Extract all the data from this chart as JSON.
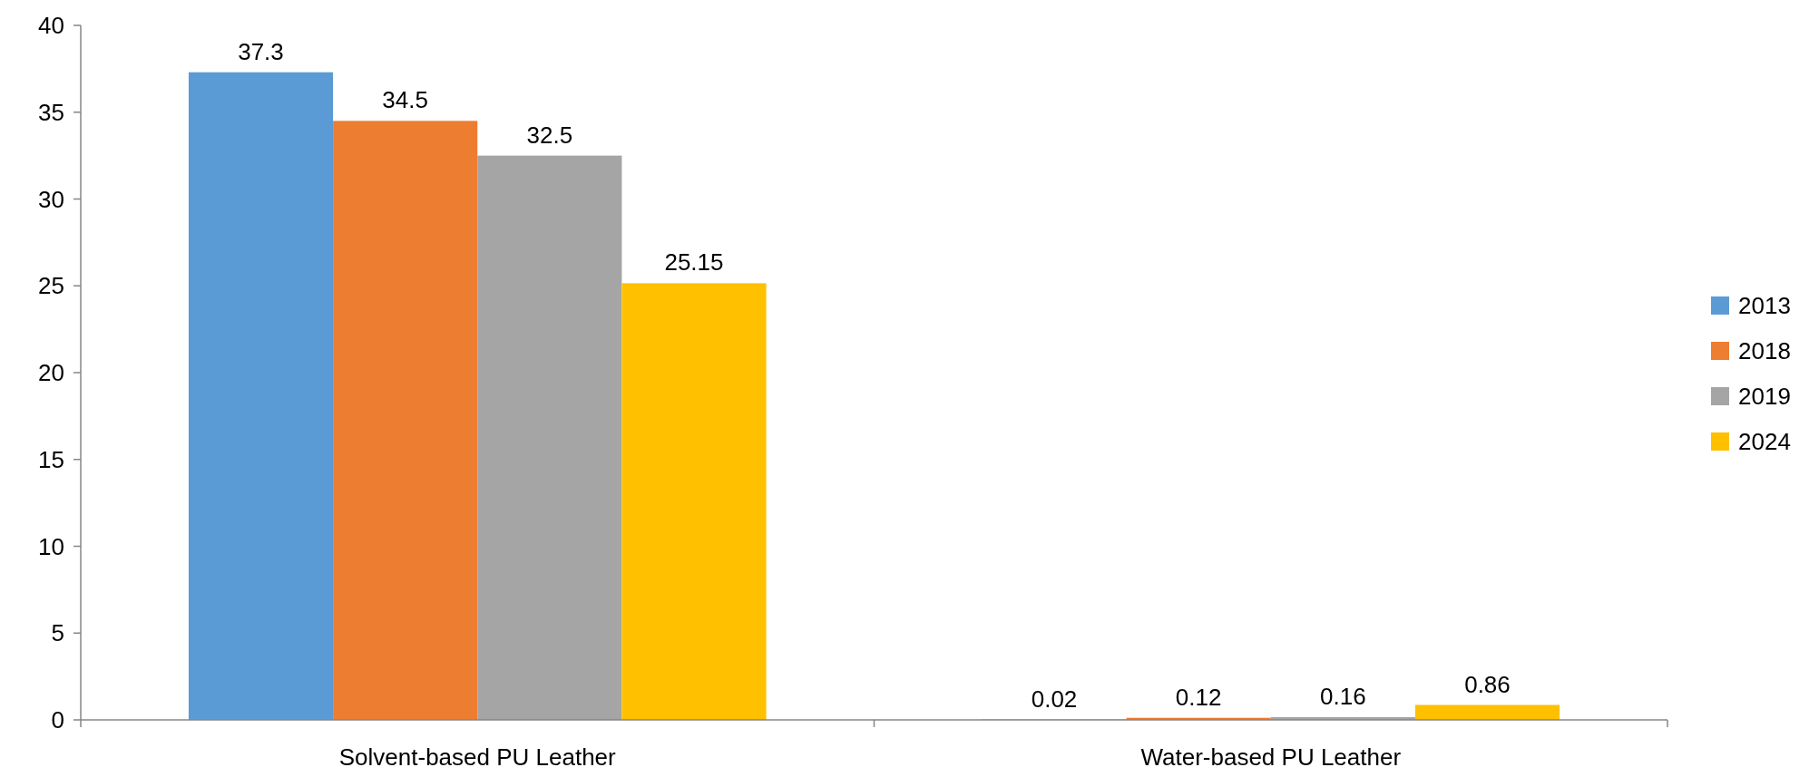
{
  "chart_data": {
    "type": "bar",
    "categories": [
      "Solvent-based PU Leather",
      "Water-based PU Leather"
    ],
    "series": [
      {
        "name": "2013",
        "color": "#5b9bd5",
        "values": [
          37.3,
          0.02
        ]
      },
      {
        "name": "2018",
        "color": "#ed7d31",
        "values": [
          34.5,
          0.12
        ]
      },
      {
        "name": "2019",
        "color": "#a5a5a5",
        "values": [
          32.5,
          0.16
        ]
      },
      {
        "name": "2024",
        "color": "#ffc000",
        "values": [
          25.15,
          0.86
        ]
      }
    ],
    "ylim": [
      0,
      40
    ],
    "yticks": [
      0,
      5,
      10,
      15,
      20,
      25,
      30,
      35,
      40
    ],
    "grid": false,
    "legend": "right",
    "data_labels": true
  }
}
